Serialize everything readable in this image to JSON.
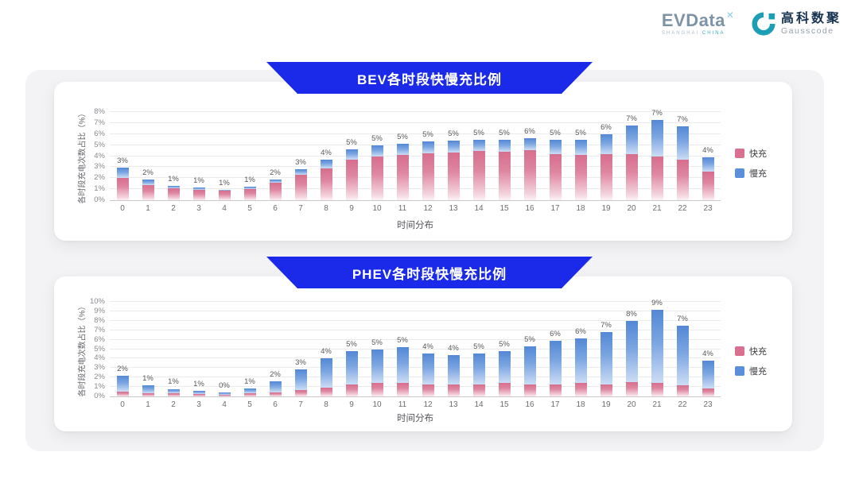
{
  "header": {
    "evdata": {
      "text": "EVData",
      "mark": "✕",
      "sub1": "SHANGHAI",
      "sub2": "CHINA"
    },
    "gausscode": {
      "cn": "高科数聚",
      "en": "Gausscode"
    }
  },
  "colors": {
    "banner_blue": "#1A2AE8",
    "fast_pink": "#D9708F",
    "slow_blue": "#5B8FD9",
    "gausscode_teal": "#1E9EB4"
  },
  "chart_data": [
    {
      "type": "bar",
      "stacked": true,
      "title": "BEV各时段快慢充比例",
      "xlabel": "时间分布",
      "ylabel": "各时段充电次数占比（%）",
      "ylim": [
        0,
        8
      ],
      "ytick_step": 1,
      "ytick_suffix": "%",
      "grid": true,
      "legend_position": "right",
      "categories": [
        "0",
        "1",
        "2",
        "3",
        "4",
        "5",
        "6",
        "7",
        "8",
        "9",
        "10",
        "11",
        "12",
        "13",
        "14",
        "15",
        "16",
        "17",
        "18",
        "19",
        "20",
        "21",
        "22",
        "23"
      ],
      "series": [
        {
          "name": "快充",
          "color": "#D9708F",
          "values": [
            2.0,
            1.4,
            1.05,
            0.95,
            0.85,
            1.0,
            1.6,
            2.3,
            2.9,
            3.7,
            4.0,
            4.1,
            4.25,
            4.3,
            4.45,
            4.4,
            4.55,
            4.2,
            4.1,
            4.2,
            4.2,
            4.0,
            3.7,
            2.6
          ]
        },
        {
          "name": "慢充",
          "color": "#5B8FD9",
          "values": [
            0.95,
            0.45,
            0.25,
            0.2,
            0.1,
            0.2,
            0.3,
            0.5,
            0.75,
            0.9,
            1.0,
            1.0,
            1.05,
            1.1,
            1.05,
            1.1,
            1.05,
            1.3,
            1.4,
            1.8,
            2.6,
            3.3,
            3.0,
            1.3
          ]
        }
      ],
      "labels": [
        "3%",
        "2%",
        "1%",
        "1%",
        "1%",
        "1%",
        "2%",
        "3%",
        "4%",
        "5%",
        "5%",
        "5%",
        "5%",
        "5%",
        "5%",
        "5%",
        "6%",
        "5%",
        "5%",
        "6%",
        "7%",
        "7%",
        "7%",
        "4%"
      ]
    },
    {
      "type": "bar",
      "stacked": true,
      "title": "PHEV各时段快慢充比例",
      "xlabel": "时间分布",
      "ylabel": "各时段充电次数占比（%）",
      "ylim": [
        0,
        10
      ],
      "ytick_step": 1,
      "ytick_suffix": "%",
      "grid": true,
      "legend_position": "right",
      "categories": [
        "0",
        "1",
        "2",
        "3",
        "4",
        "5",
        "6",
        "7",
        "8",
        "9",
        "10",
        "11",
        "12",
        "13",
        "14",
        "15",
        "16",
        "17",
        "18",
        "19",
        "20",
        "21",
        "22",
        "23"
      ],
      "series": [
        {
          "name": "快充",
          "color": "#D9708F",
          "values": [
            0.5,
            0.35,
            0.3,
            0.25,
            0.2,
            0.3,
            0.4,
            0.7,
            0.9,
            1.3,
            1.4,
            1.4,
            1.3,
            1.3,
            1.3,
            1.4,
            1.3,
            1.3,
            1.4,
            1.3,
            1.5,
            1.4,
            1.2,
            0.8
          ]
        },
        {
          "name": "慢充",
          "color": "#5B8FD9",
          "values": [
            1.7,
            0.85,
            0.5,
            0.35,
            0.25,
            0.55,
            1.2,
            2.2,
            3.1,
            3.5,
            3.6,
            3.8,
            3.2,
            3.1,
            3.2,
            3.4,
            4.0,
            4.6,
            4.7,
            5.5,
            6.5,
            7.8,
            6.3,
            3.0
          ]
        }
      ],
      "labels": [
        "2%",
        "1%",
        "1%",
        "1%",
        "0%",
        "1%",
        "2%",
        "3%",
        "4%",
        "5%",
        "5%",
        "5%",
        "4%",
        "4%",
        "5%",
        "5%",
        "5%",
        "6%",
        "6%",
        "7%",
        "8%",
        "9%",
        "7%",
        "4%"
      ]
    }
  ]
}
